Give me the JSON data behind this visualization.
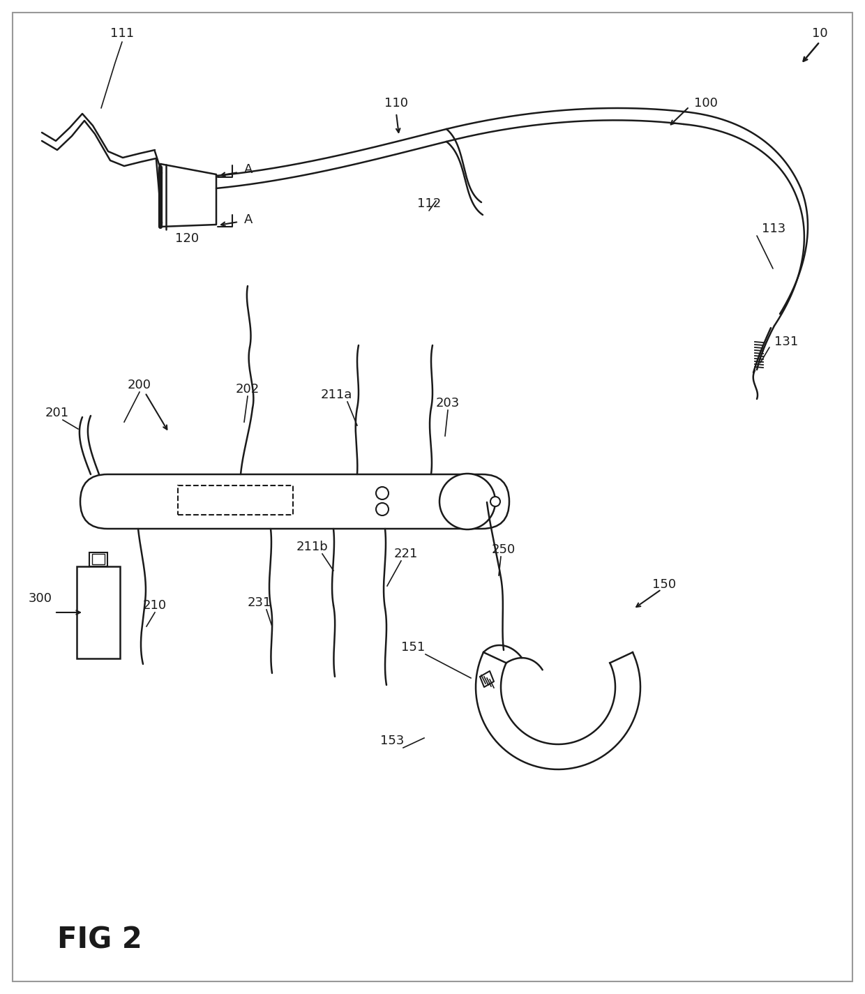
{
  "bg_color": "#ffffff",
  "line_color": "#1a1a1a",
  "line_width": 1.8,
  "fig_label": "FIG 2",
  "labels": [
    [
      "10",
      1170,
      55
    ],
    [
      "100",
      920,
      155
    ],
    [
      "110",
      560,
      82
    ],
    [
      "111",
      175,
      52
    ],
    [
      "112",
      615,
      298
    ],
    [
      "113",
      1092,
      332
    ],
    [
      "120",
      268,
      352
    ],
    [
      "131",
      1110,
      492
    ],
    [
      "200",
      200,
      558
    ],
    [
      "201",
      82,
      597
    ],
    [
      "202",
      355,
      562
    ],
    [
      "203",
      642,
      582
    ],
    [
      "210",
      222,
      872
    ],
    [
      "211a",
      482,
      570
    ],
    [
      "211b",
      448,
      788
    ],
    [
      "221",
      582,
      798
    ],
    [
      "231",
      372,
      868
    ],
    [
      "250",
      722,
      792
    ],
    [
      "300",
      58,
      842
    ],
    [
      "150",
      952,
      842
    ],
    [
      "151",
      592,
      932
    ],
    [
      "153",
      562,
      1068
    ]
  ]
}
